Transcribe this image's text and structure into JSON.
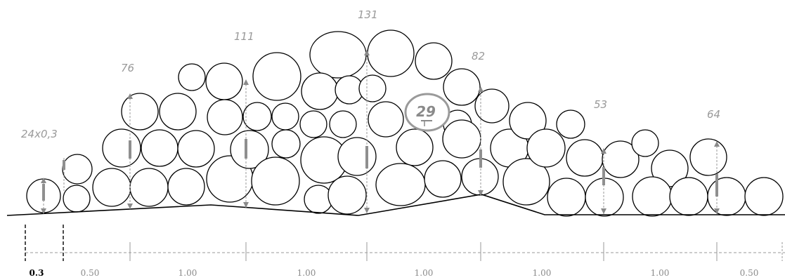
{
  "diagram": {
    "height_labels": [
      "24x0,3",
      "76",
      "111",
      "131",
      "82",
      "53",
      "64"
    ],
    "segment_labels": [
      "0.3",
      "0.50",
      "1.00",
      "1.00",
      "1.00",
      "1.00",
      "1.00",
      "0.50"
    ],
    "log_count": "29"
  }
}
